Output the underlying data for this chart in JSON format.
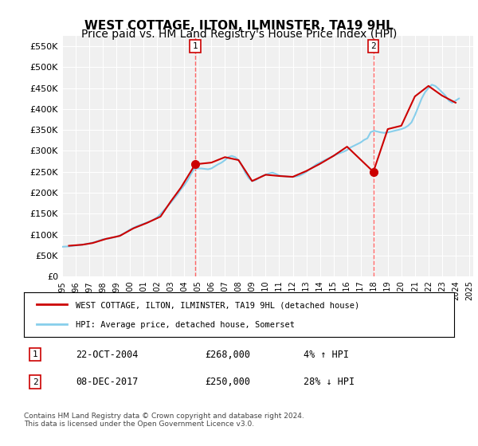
{
  "title": "WEST COTTAGE, ILTON, ILMINSTER, TA19 9HL",
  "subtitle": "Price paid vs. HM Land Registry's House Price Index (HPI)",
  "title_fontsize": 11,
  "subtitle_fontsize": 10,
  "ylim": [
    0,
    575000
  ],
  "yticks": [
    0,
    50000,
    100000,
    150000,
    200000,
    250000,
    300000,
    350000,
    400000,
    450000,
    500000,
    550000
  ],
  "ytick_labels": [
    "£0",
    "£50K",
    "£100K",
    "£150K",
    "£200K",
    "£250K",
    "£300K",
    "£350K",
    "£400K",
    "£450K",
    "£500K",
    "£550K"
  ],
  "legend_line1": "WEST COTTAGE, ILTON, ILMINSTER, TA19 9HL (detached house)",
  "legend_line2": "HPI: Average price, detached house, Somerset",
  "sale1_label": "1",
  "sale1_date": "22-OCT-2004",
  "sale1_price": "£268,000",
  "sale1_hpi": "4% ↑ HPI",
  "sale1_x": 2004.81,
  "sale1_y": 268000,
  "sale2_label": "2",
  "sale2_date": "08-DEC-2017",
  "sale2_price": "£250,000",
  "sale2_hpi": "28% ↓ HPI",
  "sale2_x": 2017.94,
  "sale2_y": 250000,
  "vline1_x": 2004.81,
  "vline2_x": 2017.94,
  "hpi_color": "#87CEEB",
  "sale_color": "#CC0000",
  "vline_color": "#FF6666",
  "background_color": "#ffffff",
  "plot_bg_color": "#f0f0f0",
  "footnote": "Contains HM Land Registry data © Crown copyright and database right 2024.\nThis data is licensed under the Open Government Licence v3.0.",
  "hpi_data_x": [
    1995,
    1995.25,
    1995.5,
    1995.75,
    1996,
    1996.25,
    1996.5,
    1996.75,
    1997,
    1997.25,
    1997.5,
    1997.75,
    1998,
    1998.25,
    1998.5,
    1998.75,
    1999,
    1999.25,
    1999.5,
    1999.75,
    2000,
    2000.25,
    2000.5,
    2000.75,
    2001,
    2001.25,
    2001.5,
    2001.75,
    2002,
    2002.25,
    2002.5,
    2002.75,
    2003,
    2003.25,
    2003.5,
    2003.75,
    2004,
    2004.25,
    2004.5,
    2004.75,
    2005,
    2005.25,
    2005.5,
    2005.75,
    2006,
    2006.25,
    2006.5,
    2006.75,
    2007,
    2007.25,
    2007.5,
    2007.75,
    2008,
    2008.25,
    2008.5,
    2008.75,
    2009,
    2009.25,
    2009.5,
    2009.75,
    2010,
    2010.25,
    2010.5,
    2010.75,
    2011,
    2011.25,
    2011.5,
    2011.75,
    2012,
    2012.25,
    2012.5,
    2012.75,
    2013,
    2013.25,
    2013.5,
    2013.75,
    2014,
    2014.25,
    2014.5,
    2014.75,
    2015,
    2015.25,
    2015.5,
    2015.75,
    2016,
    2016.25,
    2016.5,
    2016.75,
    2017,
    2017.25,
    2017.5,
    2017.75,
    2018,
    2018.25,
    2018.5,
    2018.75,
    2019,
    2019.25,
    2019.5,
    2019.75,
    2020,
    2020.25,
    2020.5,
    2020.75,
    2021,
    2021.25,
    2021.5,
    2021.75,
    2022,
    2022.25,
    2022.5,
    2022.75,
    2023,
    2023.25,
    2023.5,
    2023.75,
    2024,
    2024.25
  ],
  "hpi_data_y": [
    71000,
    71500,
    72000,
    73000,
    74000,
    75000,
    76000,
    77500,
    79000,
    81000,
    83000,
    86000,
    89000,
    90000,
    91000,
    93000,
    95000,
    98000,
    102000,
    107000,
    112000,
    116000,
    120000,
    123000,
    126000,
    129000,
    132000,
    136000,
    141000,
    149000,
    158000,
    167000,
    176000,
    186000,
    196000,
    208000,
    218000,
    230000,
    245000,
    257000,
    258000,
    258000,
    257000,
    256000,
    258000,
    263000,
    268000,
    272000,
    278000,
    285000,
    288000,
    285000,
    278000,
    265000,
    248000,
    235000,
    228000,
    230000,
    235000,
    240000,
    243000,
    246000,
    248000,
    245000,
    241000,
    240000,
    239000,
    238000,
    238000,
    239000,
    241000,
    245000,
    250000,
    256000,
    262000,
    268000,
    272000,
    276000,
    280000,
    284000,
    288000,
    292000,
    295000,
    298000,
    302000,
    308000,
    312000,
    316000,
    320000,
    326000,
    330000,
    345000,
    348000,
    346000,
    344000,
    343000,
    344000,
    346000,
    348000,
    350000,
    352000,
    355000,
    360000,
    368000,
    385000,
    405000,
    425000,
    440000,
    450000,
    458000,
    455000,
    448000,
    440000,
    432000,
    420000,
    415000,
    420000,
    425000
  ],
  "sale_data_x": [
    1995.5,
    1996.5,
    1997.25,
    1998.25,
    1999.25,
    2000.25,
    2001.25,
    2002.25,
    2003,
    2003.75,
    2004.81,
    2006,
    2007,
    2008,
    2009,
    2010,
    2011,
    2012,
    2013,
    2014,
    2015,
    2016,
    2017.94,
    2019,
    2020,
    2021,
    2022,
    2023,
    2024
  ],
  "sale_data_y": [
    73500,
    76000,
    80000,
    90000,
    97000,
    115000,
    128000,
    143000,
    179000,
    212000,
    268000,
    272000,
    285000,
    278000,
    228000,
    243000,
    240000,
    238000,
    252000,
    269000,
    288000,
    310000,
    250000,
    352000,
    360000,
    430000,
    455000,
    432000,
    415000
  ],
  "xtick_years": [
    1995,
    1996,
    1997,
    1998,
    1999,
    2000,
    2001,
    2002,
    2003,
    2004,
    2005,
    2006,
    2007,
    2008,
    2009,
    2010,
    2011,
    2012,
    2013,
    2014,
    2015,
    2016,
    2017,
    2018,
    2019,
    2020,
    2021,
    2022,
    2023,
    2024,
    2025
  ]
}
